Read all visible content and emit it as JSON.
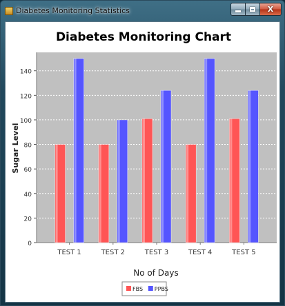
{
  "window": {
    "title": "Diabetes Monitoring Statistics",
    "icon": "java-app-icon",
    "minimize": "minimize-icon",
    "maximize": "maximize-icon",
    "close_label": "X"
  },
  "chart_data": {
    "type": "bar",
    "title": "Diabetes Monitoring Chart",
    "xlabel": "No of Days",
    "ylabel": "Sugar Level",
    "categories": [
      "TEST 1",
      "TEST 2",
      "TEST 3",
      "TEST 4",
      "TEST 5"
    ],
    "series": [
      {
        "name": "FBS",
        "values": [
          80,
          80,
          101,
          80,
          101
        ],
        "color": "#ff5555"
      },
      {
        "name": "PPBS",
        "values": [
          150,
          100,
          124,
          150,
          124
        ],
        "color": "#5555ff"
      }
    ],
    "ylim": [
      0,
      155
    ],
    "yticks": [
      0,
      20,
      40,
      60,
      80,
      100,
      120,
      140
    ],
    "grid": true,
    "plot_background": "#c0c0c0",
    "legend_position": "bottom"
  }
}
